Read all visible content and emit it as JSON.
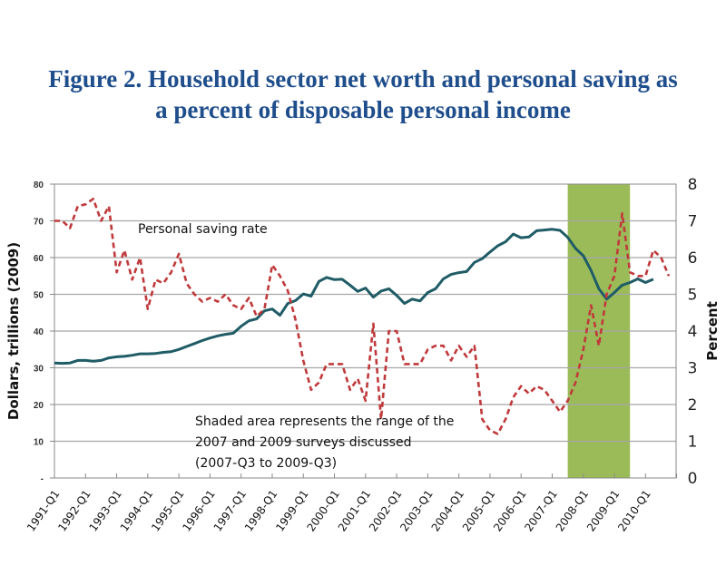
{
  "title_line1": "Figure 2. Household sector net worth and personal saving as",
  "title_line2": "a percent of disposable personal income",
  "chart_data": {
    "type": "line",
    "title": "Figure 2. Household sector net worth and personal saving as a percent of disposable personal income",
    "xlabel": "",
    "ylabel_left": "Dollars, trillions (2009)",
    "ylabel_right": "Percent",
    "ylim_left": [
      0,
      80
    ],
    "ylim_right": [
      0,
      8
    ],
    "yticks_left": [
      "-",
      "10",
      "20",
      "30",
      "40",
      "50",
      "60",
      "70",
      "80"
    ],
    "yticks_right": [
      "0",
      "1",
      "2",
      "3",
      "4",
      "5",
      "6",
      "7",
      "8"
    ],
    "x_tick_labels": [
      "1991-Q1",
      "1992-Q1",
      "1993-Q1",
      "1994-Q1",
      "1995-Q1",
      "1996-Q1",
      "1997-Q1",
      "1998-Q1",
      "1999-Q1",
      "2000-Q1",
      "2001-Q1",
      "2002-Q1",
      "2003-Q1",
      "2004-Q1",
      "2005-Q1",
      "2006-Q1",
      "2007-Q1",
      "2008-Q1",
      "2009-Q1",
      "2010-Q1"
    ],
    "x_start": "1991-Q1",
    "grid": true,
    "shaded_region": {
      "from": "2007-Q3",
      "to": "2009-Q3",
      "color": "#9bbb59"
    },
    "annotations": [
      {
        "text": "Personal saving rate"
      },
      {
        "text": "Shaded area represents the range of the"
      },
      {
        "text": "2007 and 2009 surveys  discussed"
      },
      {
        "text": "(2007-Q3 to 2009-Q3)"
      }
    ],
    "series": [
      {
        "name": "Household net worth",
        "axis": "left",
        "color": "#1f5c66",
        "style": "solid",
        "values": [
          31.3,
          31.2,
          31.3,
          32.0,
          32.0,
          31.8,
          32.0,
          32.7,
          33.0,
          33.1,
          33.4,
          33.8,
          33.8,
          33.9,
          34.2,
          34.4,
          35.0,
          35.8,
          36.6,
          37.4,
          38.1,
          38.7,
          39.1,
          39.4,
          41.3,
          42.8,
          43.3,
          45.5,
          46.0,
          44.3,
          47.5,
          48.3,
          50.1,
          49.5,
          53.5,
          54.6,
          54.0,
          54.1,
          52.5,
          50.8,
          51.7,
          49.2,
          50.9,
          51.5,
          49.7,
          47.5,
          48.7,
          48.2,
          50.5,
          51.5,
          54.2,
          55.4,
          55.9,
          56.2,
          58.7,
          59.7,
          61.5,
          63.2,
          64.3,
          66.4,
          65.4,
          65.6,
          67.3,
          67.5,
          67.7,
          67.4,
          65.5,
          62.5,
          60.5,
          56.5,
          51.5,
          48.7,
          50.5,
          52.5,
          53.2,
          54.2,
          53.2,
          54.1
        ]
      },
      {
        "name": "Personal saving rate",
        "axis": "right",
        "color": "#c0393b",
        "style": "dashed",
        "values": [
          7.0,
          7.0,
          6.8,
          7.4,
          7.45,
          7.6,
          7.0,
          7.4,
          5.6,
          6.2,
          5.4,
          6.0,
          4.6,
          5.4,
          5.3,
          5.6,
          6.1,
          5.3,
          5.0,
          4.8,
          4.9,
          4.8,
          5.0,
          4.7,
          4.6,
          4.9,
          4.4,
          4.6,
          5.8,
          5.5,
          5.1,
          4.3,
          3.2,
          2.4,
          2.6,
          3.1,
          3.1,
          3.1,
          2.4,
          2.7,
          2.1,
          4.2,
          1.6,
          4.0,
          4.0,
          3.1,
          3.1,
          3.1,
          3.5,
          3.6,
          3.6,
          3.2,
          3.6,
          3.3,
          3.6,
          1.6,
          1.3,
          1.2,
          1.6,
          2.2,
          2.5,
          2.3,
          2.5,
          2.4,
          2.1,
          1.8,
          2.1,
          2.6,
          3.5,
          4.7,
          3.6,
          5.0,
          5.5,
          7.2,
          5.6,
          5.5,
          5.5,
          6.2,
          6.0,
          5.5
        ]
      }
    ]
  }
}
